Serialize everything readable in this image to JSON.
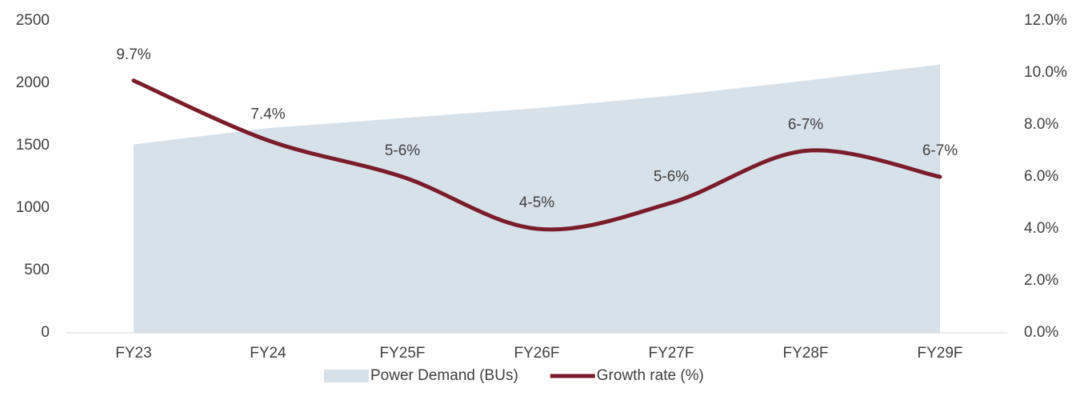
{
  "chart_data": {
    "type": "area-line",
    "categories": [
      "FY23",
      "FY24",
      "FY25F",
      "FY26F",
      "FY27F",
      "FY28F",
      "FY29F"
    ],
    "series": [
      {
        "name": "Power Demand (BUs)",
        "type": "area",
        "color": "#d6e1ea",
        "values": [
          1510,
          1640,
          1720,
          1800,
          1900,
          2020,
          2150
        ]
      },
      {
        "name": "Growth rate (%)",
        "type": "line",
        "color": "#7b1c2a",
        "axis": "y2",
        "values": [
          9.7,
          7.4,
          6.0,
          4.0,
          5.0,
          7.0,
          6.0
        ],
        "value_labels": [
          "9.7%",
          "7.4%",
          "5-6%",
          "4-5%",
          "5-6%",
          "6-7%",
          "6-7%"
        ]
      }
    ],
    "ylim": [
      0,
      2500
    ],
    "yticks": [
      0,
      500,
      1000,
      1500,
      2000,
      2500
    ],
    "y2lim": [
      0,
      12
    ],
    "y2ticks": [
      {
        "value": 0,
        "label": "0.0%"
      },
      {
        "value": 2,
        "label": "2.0%"
      },
      {
        "value": 4,
        "label": "4.0%"
      },
      {
        "value": 6,
        "label": "6.0%"
      },
      {
        "value": 8,
        "label": "8.0%"
      },
      {
        "value": 10,
        "label": "10.0%"
      },
      {
        "value": 12,
        "label": "12.0%"
      }
    ],
    "legend": "bottom"
  }
}
